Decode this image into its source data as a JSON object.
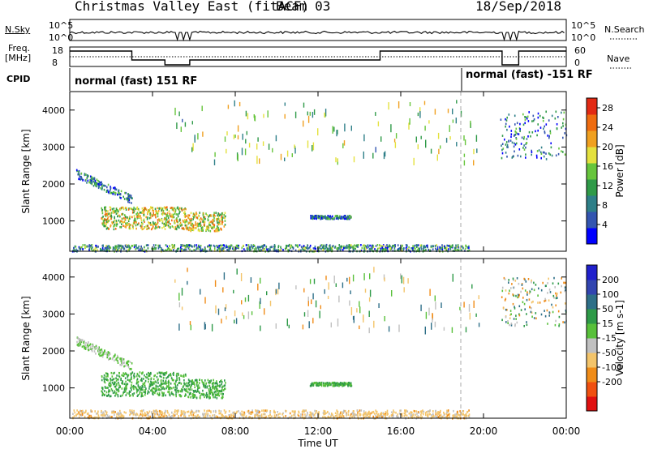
{
  "header": {
    "title": "Christmas Valley East (fitACF)",
    "beam": "Beam 03",
    "date": "18/Sep/2018"
  },
  "top_panel": {
    "left_labels": {
      "nsky": "N.Sky",
      "freq": "Freq.",
      "freq_unit": "[MHz]",
      "cpid": "CPID"
    },
    "right_labels": {
      "nsearch": "N.Search",
      "nave": "Nave"
    },
    "noise_left_ticks": [
      "10^5",
      "10^0"
    ],
    "noise_right_ticks": [
      "10^5",
      "10^0"
    ],
    "freq_left_ticks": [
      "18",
      "8"
    ],
    "nave_right_ticks": [
      "60",
      "0"
    ],
    "cpid_segments": [
      {
        "label": "normal (fast) 151 RF"
      },
      {
        "label": "normal (fast) -151 RF"
      }
    ]
  },
  "chart_data": [
    {
      "type": "heatmap",
      "title": "",
      "xlabel": "",
      "ylabel": "Slant Range [km]",
      "ylim": [
        180,
        4500
      ],
      "xlim_hours": [
        0,
        24
      ],
      "x_ticks": [
        "00:00",
        "04:00",
        "08:00",
        "12:00",
        "16:00",
        "20:00",
        "00:00"
      ],
      "y_ticks": [
        1000,
        2000,
        3000,
        4000
      ],
      "colorbar": {
        "label": "Power [dB]",
        "range": [
          0,
          30
        ],
        "ticks": [
          4,
          8,
          12,
          16,
          20,
          24,
          28
        ],
        "colors": [
          "#0000ff",
          "#3355b0",
          "#2e7f88",
          "#2f9a48",
          "#67c53c",
          "#e4e13e",
          "#f0a020",
          "#ef6c10",
          "#e22a14"
        ]
      },
      "features": [
        {
          "region": "near-range band",
          "time_h": [
            0.1,
            19.3
          ],
          "range_km": [
            200,
            380
          ],
          "level": "mixed"
        },
        {
          "region": "main patch",
          "time_h": [
            1.5,
            7.5
          ],
          "range_km": [
            800,
            1400
          ],
          "level": 18
        },
        {
          "region": "diagonal streak",
          "time_h": [
            0.3,
            3.0
          ],
          "range_km": [
            1500,
            2400
          ],
          "level": 8
        },
        {
          "region": "isolated echo",
          "time_h": [
            11.6,
            13.6
          ],
          "range_km": [
            1080,
            1170
          ],
          "level": 8
        },
        {
          "region": "far range",
          "time_h": [
            20.8,
            24
          ],
          "range_km": [
            2700,
            4000
          ],
          "level": 8
        }
      ]
    },
    {
      "type": "heatmap",
      "title": "",
      "xlabel": "Time UT",
      "ylabel": "Slant Range [km]",
      "ylim": [
        180,
        4500
      ],
      "xlim_hours": [
        0,
        24
      ],
      "x_ticks": [
        "00:00",
        "04:00",
        "08:00",
        "12:00",
        "16:00",
        "20:00",
        "00:00"
      ],
      "y_ticks": [
        1000,
        2000,
        3000,
        4000
      ],
      "colorbar": {
        "label": "Velocity [m s-1]",
        "range": [
          -250,
          250
        ],
        "ticks": [
          200,
          100,
          50,
          15,
          -15,
          -50,
          -100,
          -200
        ],
        "colors": [
          "#e01010",
          "#f05010",
          "#f08c18",
          "#f3c46a",
          "#c0c0c0",
          "#58c03a",
          "#2e9a48",
          "#2e6f88",
          "#3245b0",
          "#2020cc"
        ]
      },
      "features": [
        {
          "region": "near-range band",
          "time_h": [
            0.1,
            19.3
          ],
          "range_km": [
            200,
            420
          ],
          "level": "-15 to -100"
        },
        {
          "region": "main patch",
          "time_h": [
            1.5,
            7.5
          ],
          "range_km": [
            800,
            1450
          ],
          "level": 50
        },
        {
          "region": "diagonal streak",
          "time_h": [
            0.3,
            3.0
          ],
          "range_km": [
            1700,
            2200
          ],
          "level": 0
        },
        {
          "region": "isolated echo",
          "time_h": [
            11.6,
            13.6
          ],
          "range_km": [
            1080,
            1170
          ],
          "level": 50
        },
        {
          "region": "far range",
          "time_h": [
            20.8,
            24
          ],
          "range_km": [
            2700,
            4000
          ],
          "level": "mixed"
        }
      ]
    }
  ]
}
